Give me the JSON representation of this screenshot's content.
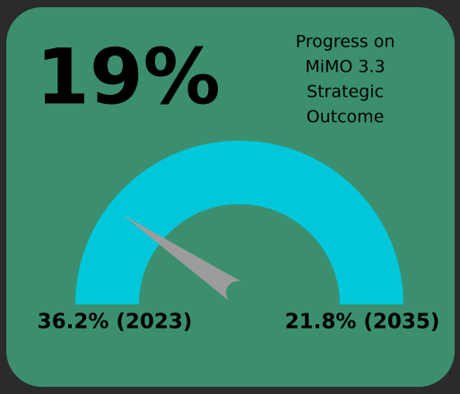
{
  "chart_data": {
    "type": "gauge",
    "title": [
      "Progress on",
      "MiMO 3.3",
      "Strategic",
      "Outcome"
    ],
    "value": 19,
    "value_label": "19%",
    "range": [
      0,
      100
    ],
    "start_label": "36.2% (2023)",
    "end_label": "21.8% (2035)",
    "color": "#00c8da",
    "needle_color": "#9c9c9c",
    "card_color": "#3b8f6f"
  }
}
